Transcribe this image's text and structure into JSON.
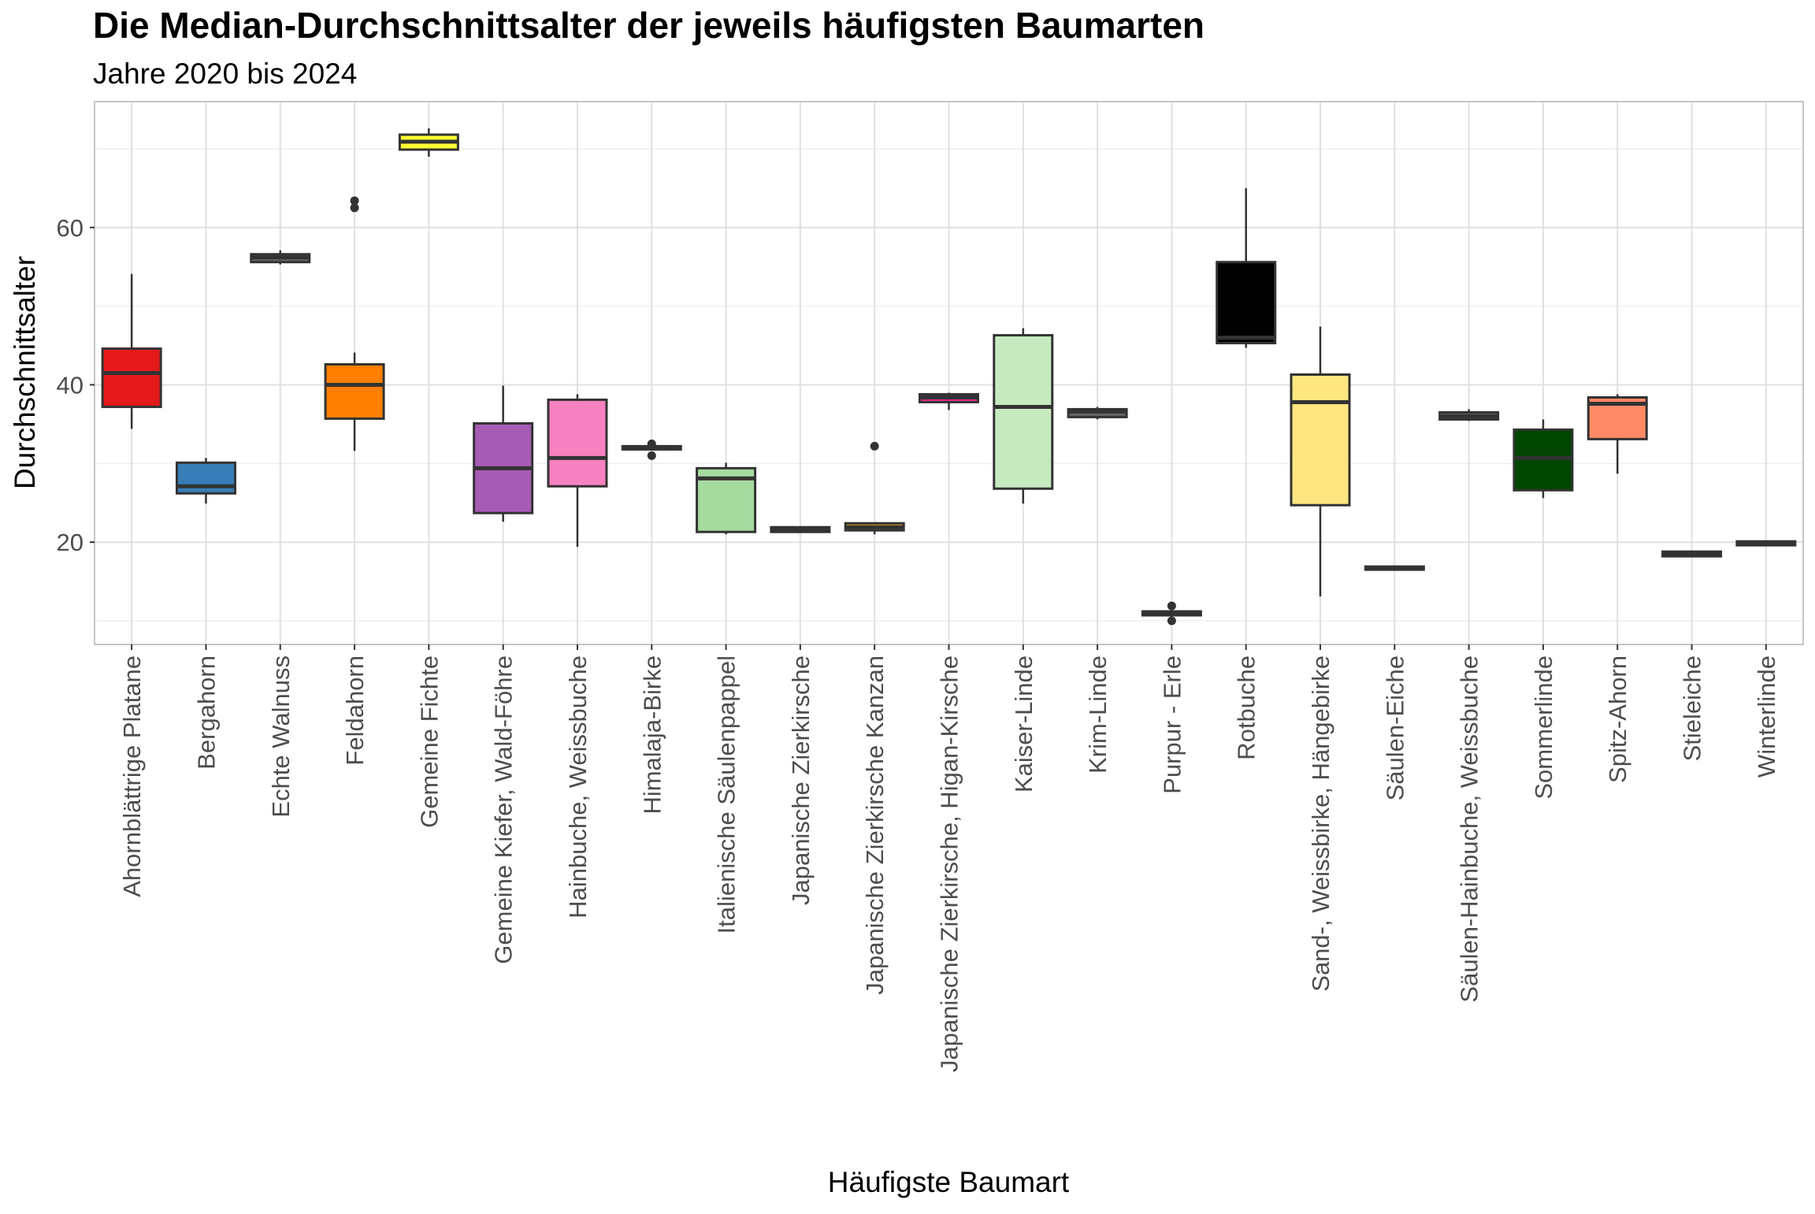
{
  "chart_data": {
    "type": "boxplot",
    "title": "Die Median-Durchschnittsalter der jeweils häufigsten Baumarten",
    "subtitle": "Jahre 2020 bis 2024",
    "xlabel": "Häufigste Baumart",
    "ylabel": "Durchschnittsalter",
    "ylim": [
      7,
      76
    ],
    "yticks": [
      20,
      40,
      60
    ],
    "ytick_labels": [
      "20",
      "40",
      "60"
    ],
    "grid": true,
    "legend": "none",
    "categories": [
      {
        "name": "Ahornblättrige Platane",
        "color": "#E41A1C",
        "min": 34.4,
        "q1": 37.2,
        "median": 41.5,
        "q3": 44.6,
        "max": 54.1,
        "outliers": []
      },
      {
        "name": "Bergahorn",
        "color": "#377EB8",
        "min": 24.9,
        "q1": 26.2,
        "median": 27.1,
        "q3": 30.1,
        "max": 30.7,
        "outliers": []
      },
      {
        "name": "Echte Walnuss",
        "color": "#666666",
        "min": 55.3,
        "q1": 55.6,
        "median": 56.2,
        "q3": 56.6,
        "max": 57.1,
        "outliers": []
      },
      {
        "name": "Feldahorn",
        "color": "#FF7F00",
        "min": 31.6,
        "q1": 35.7,
        "median": 40.0,
        "q3": 42.6,
        "max": 44.1,
        "outliers": [
          63.4,
          62.5
        ]
      },
      {
        "name": "Gemeine Fichte",
        "color": "#FFFF33",
        "min": 69.0,
        "q1": 69.9,
        "median": 70.9,
        "q3": 71.8,
        "max": 72.6,
        "outliers": []
      },
      {
        "name": "Gemeine Kiefer, Wald-Föhre",
        "color": "#A65CB5",
        "min": 22.6,
        "q1": 23.7,
        "median": 29.4,
        "q3": 35.1,
        "max": 39.9,
        "outliers": []
      },
      {
        "name": "Hainbuche, Weissbuche",
        "color": "#F781BF",
        "min": 19.4,
        "q1": 27.1,
        "median": 30.7,
        "q3": 38.1,
        "max": 38.8,
        "outliers": []
      },
      {
        "name": "Himalaja-Birke",
        "color": "#555555",
        "min": 31.8,
        "q1": 31.8,
        "median": 31.9,
        "q3": 32.2,
        "max": 32.2,
        "outliers": [
          32.5,
          31.0
        ]
      },
      {
        "name": "Italienische Säulenpappel",
        "color": "#A6DBA0",
        "min": 21.0,
        "q1": 21.3,
        "median": 28.1,
        "q3": 29.4,
        "max": 30.1,
        "outliers": []
      },
      {
        "name": "Japanische Zierkirsche",
        "color": "#4682B4",
        "min": 21.2,
        "q1": 21.3,
        "median": 21.6,
        "q3": 21.9,
        "max": 22.0,
        "outliers": []
      },
      {
        "name": "Japanische Zierkirsche Kanzan",
        "color": "#DAA520",
        "min": 21.0,
        "q1": 21.5,
        "median": 21.9,
        "q3": 22.4,
        "max": 22.4,
        "outliers": [
          32.2
        ]
      },
      {
        "name": "Japanische Zierkirsche, Higan-Kirsche",
        "color": "#E7298A",
        "min": 36.8,
        "q1": 37.8,
        "median": 38.4,
        "q3": 38.8,
        "max": 39.0,
        "outliers": []
      },
      {
        "name": "Kaiser-Linde",
        "color": "#C7E9C0",
        "min": 24.9,
        "q1": 26.8,
        "median": 37.2,
        "q3": 46.3,
        "max": 47.2,
        "outliers": []
      },
      {
        "name": "Krim-Linde",
        "color": "#666666",
        "min": 35.6,
        "q1": 35.9,
        "median": 36.6,
        "q3": 36.9,
        "max": 37.2,
        "outliers": []
      },
      {
        "name": "Purpur - Erle",
        "color": "#666666",
        "min": 10.7,
        "q1": 10.7,
        "median": 10.9,
        "q3": 11.2,
        "max": 11.2,
        "outliers": [
          11.9,
          10.0
        ]
      },
      {
        "name": "Rotbuche",
        "color": "#000000",
        "min": 44.7,
        "q1": 45.3,
        "median": 46.0,
        "q3": 55.6,
        "max": 65.0,
        "outliers": []
      },
      {
        "name": "Sand-, Weissbirke, Hängebirke",
        "color": "#FFE680",
        "min": 13.1,
        "q1": 24.7,
        "median": 37.8,
        "q3": 41.3,
        "max": 47.4,
        "outliers": []
      },
      {
        "name": "Säulen-Eiche",
        "color": "#666666",
        "min": 16.4,
        "q1": 16.5,
        "median": 16.7,
        "q3": 16.9,
        "max": 16.9,
        "outliers": []
      },
      {
        "name": "Säulen-Hainbuche, Weissbuche",
        "color": "#666666",
        "min": 35.4,
        "q1": 35.6,
        "median": 36.0,
        "q3": 36.5,
        "max": 36.9,
        "outliers": []
      },
      {
        "name": "Sommerlinde",
        "color": "#004600",
        "min": 25.6,
        "q1": 26.6,
        "median": 30.7,
        "q3": 34.3,
        "max": 35.6,
        "outliers": []
      },
      {
        "name": "Spitz-Ahorn",
        "color": "#FF8A65",
        "min": 28.7,
        "q1": 33.1,
        "median": 37.6,
        "q3": 38.4,
        "max": 38.8,
        "outliers": []
      },
      {
        "name": "Stieleiche",
        "color": "#8B6F5E",
        "min": 18.1,
        "q1": 18.2,
        "median": 18.5,
        "q3": 18.8,
        "max": 18.9,
        "outliers": []
      },
      {
        "name": "Winterlinde",
        "color": "#666666",
        "min": 19.5,
        "q1": 19.6,
        "median": 19.9,
        "q3": 20.1,
        "max": 20.2,
        "outliers": []
      }
    ]
  }
}
